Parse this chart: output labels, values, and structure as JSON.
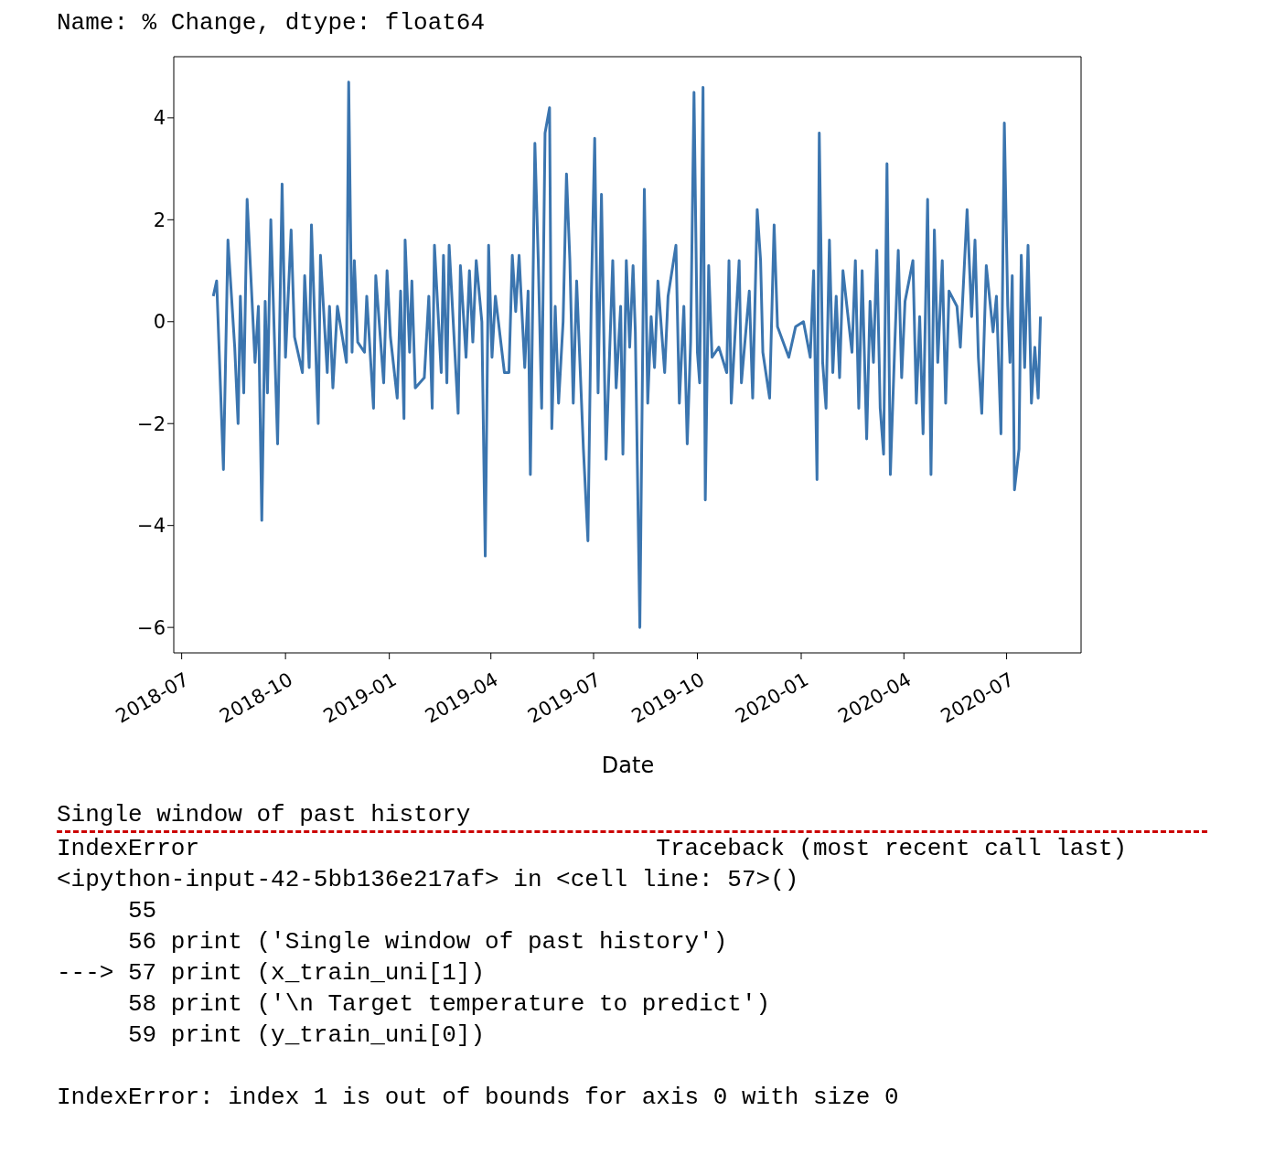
{
  "chart_data": {
    "type": "line",
    "xlabel": "Date",
    "annotations": [
      "Name: % Change, dtype: float64",
      "Single window of past history",
      "IndexError                                Traceback (most recent call last)",
      "<ipython-input-42-5bb136e217af> in <cell line: 57>()",
      "     55",
      "     56 print ('Single window of past history')",
      "---> 57 print (x_train_uni[1])",
      "     58 print ('\\n Target temperature to predict')",
      "     59 print (y_train_uni[0])",
      "IndexError: index 1 is out of bounds for axis 0 with size 0"
    ],
    "x": [
      "2018-07-29",
      "2018-08-01",
      "2018-08-07",
      "2018-08-11",
      "2018-08-17",
      "2018-08-20",
      "2018-08-22",
      "2018-08-25",
      "2018-08-28",
      "2018-09-04",
      "2018-09-07",
      "2018-09-10",
      "2018-09-13",
      "2018-09-15",
      "2018-09-18",
      "2018-09-24",
      "2018-09-28",
      "2018-10-01",
      "2018-10-06",
      "2018-10-09",
      "2018-10-16",
      "2018-10-18",
      "2018-10-22",
      "2018-10-24",
      "2018-10-30",
      "2018-11-01",
      "2018-11-07",
      "2018-11-09",
      "2018-11-12",
      "2018-11-16",
      "2018-11-24",
      "2018-11-26",
      "2018-11-29",
      "2018-12-01",
      "2018-12-04",
      "2018-12-10",
      "2018-12-12",
      "2018-12-18",
      "2018-12-20",
      "2018-12-27",
      "2018-12-30",
      "2019-01-02",
      "2019-01-08",
      "2019-01-11",
      "2019-01-14",
      "2019-01-15",
      "2019-01-19",
      "2019-01-21",
      "2019-01-24",
      "2019-02-01",
      "2019-02-05",
      "2019-02-08",
      "2019-02-10",
      "2019-02-16",
      "2019-02-18",
      "2019-02-21",
      "2019-02-23",
      "2019-03-03",
      "2019-03-05",
      "2019-03-10",
      "2019-03-13",
      "2019-03-16",
      "2019-03-19",
      "2019-03-24",
      "2019-03-27",
      "2019-03-30",
      "2019-04-02",
      "2019-04-05",
      "2019-04-13",
      "2019-04-17",
      "2019-04-20",
      "2019-04-23",
      "2019-04-26",
      "2019-05-01",
      "2019-05-04",
      "2019-05-06",
      "2019-05-10",
      "2019-05-13",
      "2019-05-16",
      "2019-05-19",
      "2019-05-23",
      "2019-05-25",
      "2019-05-28",
      "2019-05-31",
      "2019-06-04",
      "2019-06-07",
      "2019-06-10",
      "2019-06-13",
      "2019-06-16",
      "2019-06-22",
      "2019-06-26",
      "2019-06-29",
      "2019-07-02",
      "2019-07-05",
      "2019-07-08",
      "2019-07-12",
      "2019-07-18",
      "2019-07-21",
      "2019-07-25",
      "2019-07-27",
      "2019-07-30",
      "2019-08-02",
      "2019-08-05",
      "2019-08-07",
      "2019-08-11",
      "2019-08-15",
      "2019-08-18",
      "2019-08-21",
      "2019-08-24",
      "2019-08-27",
      "2019-09-02",
      "2019-09-05",
      "2019-09-12",
      "2019-09-15",
      "2019-09-19",
      "2019-09-22",
      "2019-09-25",
      "2019-09-28",
      "2019-10-01",
      "2019-10-03",
      "2019-10-06",
      "2019-10-08",
      "2019-10-11",
      "2019-10-14",
      "2019-10-20",
      "2019-10-27",
      "2019-10-29",
      "2019-10-31",
      "2019-11-07",
      "2019-11-09",
      "2019-11-16",
      "2019-11-19",
      "2019-11-23",
      "2019-11-26",
      "2019-11-28",
      "2019-12-04",
      "2019-12-08",
      "2019-12-11",
      "2019-12-21",
      "2019-12-27",
      "2020-01-03",
      "2020-01-09",
      "2020-01-12",
      "2020-01-15",
      "2020-01-17",
      "2020-01-20",
      "2020-01-23",
      "2020-01-26",
      "2020-01-29",
      "2020-02-01",
      "2020-02-04",
      "2020-02-07",
      "2020-02-15",
      "2020-02-18",
      "2020-02-21",
      "2020-02-24",
      "2020-02-28",
      "2020-03-02",
      "2020-03-05",
      "2020-03-08",
      "2020-03-11",
      "2020-03-14",
      "2020-03-17",
      "2020-03-20",
      "2020-03-24",
      "2020-03-27",
      "2020-03-30",
      "2020-04-02",
      "2020-04-09",
      "2020-04-12",
      "2020-04-15",
      "2020-04-18",
      "2020-04-22",
      "2020-04-25",
      "2020-04-28",
      "2020-05-01",
      "2020-05-05",
      "2020-05-08",
      "2020-05-11",
      "2020-05-18",
      "2020-05-21",
      "2020-05-27",
      "2020-05-31",
      "2020-06-03",
      "2020-06-06",
      "2020-06-09",
      "2020-06-13",
      "2020-06-19",
      "2020-06-22",
      "2020-06-26",
      "2020-06-29",
      "2020-07-02",
      "2020-07-04",
      "2020-07-06",
      "2020-07-08",
      "2020-07-12",
      "2020-07-14",
      "2020-07-17",
      "2020-07-20",
      "2020-07-23",
      "2020-07-26",
      "2020-07-29",
      "2020-07-31"
    ],
    "series": [
      {
        "color": "#3b75af",
        "values": [
          0.5,
          0.8,
          -2.9,
          1.6,
          -0.5,
          -2.0,
          0.5,
          -1.4,
          2.4,
          -0.8,
          0.3,
          -3.9,
          0.4,
          -1.4,
          2.0,
          -2.4,
          2.7,
          -0.7,
          1.8,
          -0.3,
          -1.0,
          0.9,
          -0.9,
          1.9,
          -2.0,
          1.3,
          -1.0,
          0.3,
          -1.3,
          0.3,
          -0.8,
          4.7,
          -0.6,
          1.2,
          -0.4,
          -0.6,
          0.5,
          -1.7,
          0.9,
          -1.2,
          1.0,
          -0.3,
          -1.5,
          0.6,
          -1.9,
          1.6,
          -0.6,
          0.8,
          -1.3,
          -1.1,
          0.5,
          -1.7,
          1.5,
          -1.0,
          1.3,
          -1.2,
          1.5,
          -1.8,
          1.1,
          -0.7,
          1.0,
          -0.4,
          1.2,
          0.0,
          -4.6,
          1.5,
          -0.7,
          0.5,
          -1.0,
          -1.0,
          1.3,
          0.2,
          1.3,
          -0.9,
          0.6,
          -3.0,
          3.5,
          1.2,
          -1.7,
          3.7,
          4.2,
          -2.1,
          0.3,
          -1.6,
          0.0,
          2.9,
          1.2,
          -1.6,
          0.8,
          -2.5,
          -4.3,
          0.5,
          3.6,
          -1.4,
          2.5,
          -2.7,
          1.2,
          -1.3,
          0.3,
          -2.6,
          1.2,
          -0.5,
          1.1,
          -0.2,
          -6.0,
          2.6,
          -1.6,
          0.1,
          -0.9,
          0.8,
          -1.0,
          0.5,
          1.5,
          -1.6,
          0.3,
          -2.4,
          -0.4,
          4.5,
          -0.6,
          -1.2,
          4.6,
          -3.5,
          1.1,
          -0.7,
          -0.5,
          -1.0,
          1.2,
          -1.6,
          1.2,
          -1.2,
          0.6,
          -1.5,
          2.2,
          1.2,
          -0.6,
          -1.5,
          1.9,
          -0.1,
          -0.7,
          -0.1,
          0.0,
          -0.7,
          1.0,
          -3.1,
          3.7,
          -0.8,
          -1.7,
          1.6,
          -1.0,
          0.5,
          -1.1,
          1.0,
          -0.6,
          1.2,
          -1.7,
          1.0,
          -2.3,
          0.4,
          -0.8,
          1.4,
          -1.7,
          -2.6,
          3.1,
          -3.0,
          -0.4,
          1.4,
          -1.1,
          0.4,
          1.2,
          -1.6,
          0.1,
          -2.2,
          2.4,
          -3.0,
          1.8,
          -0.8,
          1.2,
          -1.6,
          0.6,
          0.3,
          -0.5,
          2.2,
          0.1,
          1.6,
          -0.7,
          -1.8,
          1.1,
          -0.2,
          0.5,
          -2.2,
          3.9,
          0.3,
          -0.8,
          0.9,
          -3.3,
          -2.5,
          1.3,
          -0.9,
          1.5,
          -1.6,
          -0.5,
          -1.5,
          0.1
        ]
      }
    ],
    "xlim": [
      "2018-06-24",
      "2020-09-05"
    ],
    "xticks": [
      "2018-07",
      "2018-10",
      "2019-01",
      "2019-04",
      "2019-07",
      "2019-10",
      "2020-01",
      "2020-04",
      "2020-07"
    ],
    "ylim": [
      -6.5,
      5.2
    ],
    "yticks": [
      {
        "value": -6,
        "label": "−6"
      },
      {
        "value": -4,
        "label": "−4"
      },
      {
        "value": -2,
        "label": "−2"
      },
      0,
      2,
      4
    ],
    "marker": "none",
    "line_style": "solid",
    "grid": false,
    "legend": false
  }
}
